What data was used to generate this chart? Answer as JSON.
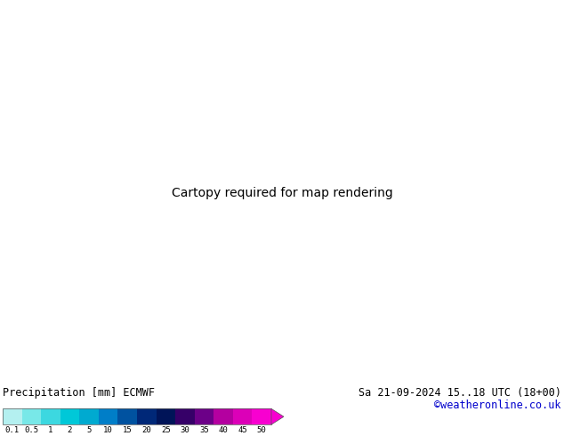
{
  "title_left": "Precipitation [mm] ECMWF",
  "title_right": "Sa 21-09-2024 15..18 UTC (18+00)",
  "credit": "©weatheronline.co.uk",
  "colorbar_labels": [
    "0.1",
    "0.5",
    "1",
    "2",
    "5",
    "10",
    "15",
    "20",
    "25",
    "30",
    "35",
    "40",
    "45",
    "50"
  ],
  "colorbar_colors": [
    "#b4f0f0",
    "#78e8e8",
    "#3cd8e0",
    "#00c8d8",
    "#00aad0",
    "#007ec8",
    "#0052a0",
    "#002878",
    "#001458",
    "#360068",
    "#6c0088",
    "#b400a0",
    "#dc00b8",
    "#f800d0"
  ],
  "map_extent": [
    -120,
    -30,
    5,
    35
  ],
  "land_green": "#c8e8b0",
  "land_gray": "#d0d0d0",
  "ocean_color": "#e8eef8",
  "border_color": "#888888",
  "blue_line_color": "#0000cc",
  "red_line_color": "#dd0000",
  "figure_bg": "#ffffff",
  "credit_color": "#0000cc",
  "label_color": "#000000",
  "isobar_fontsize": 7,
  "label_fontsize": 8.5
}
